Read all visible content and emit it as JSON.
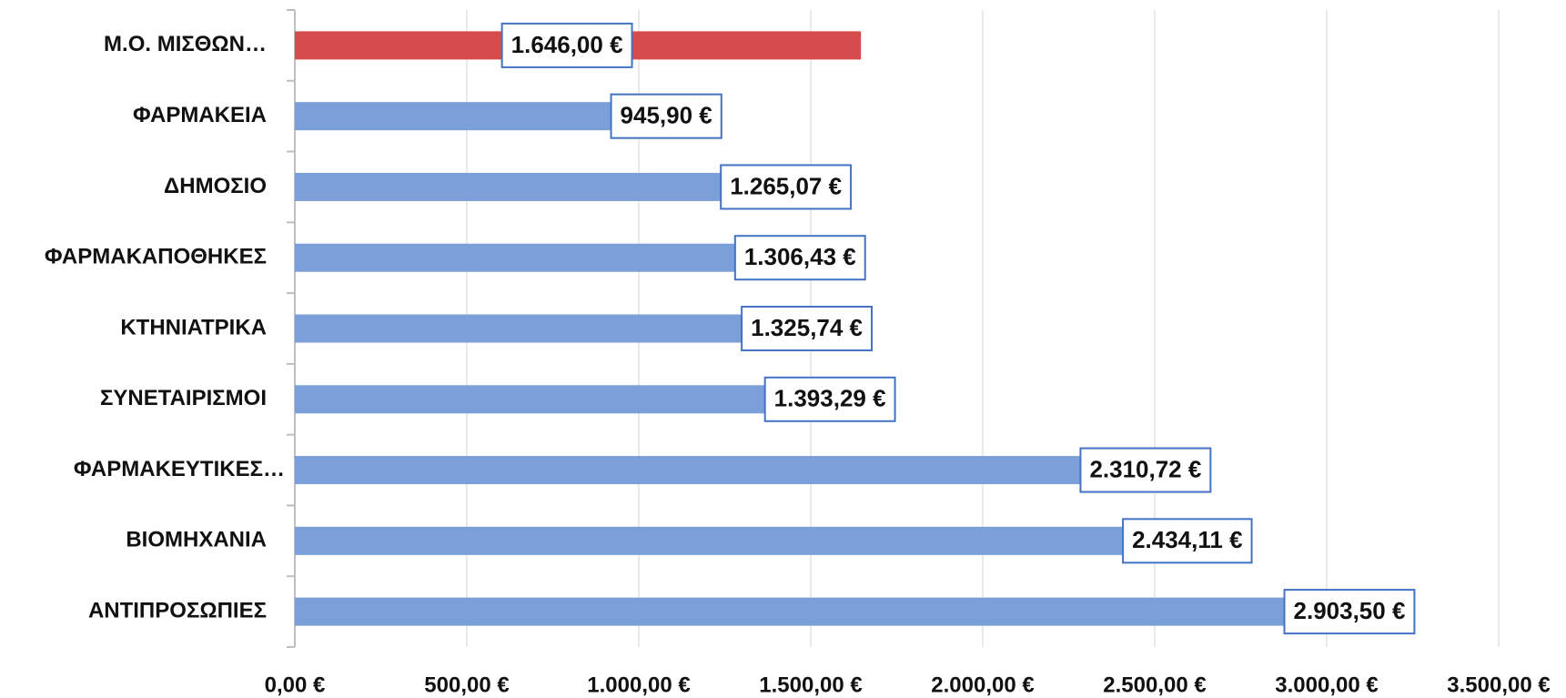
{
  "chart_data": {
    "type": "barh",
    "categories": [
      "Μ.Ο. ΜΙΣΘΩΝ…",
      "ΦΑΡΜΑΚΕΙΑ",
      "ΔΗΜΟΣΙΟ",
      "ΦΑΡΜΑΚΑΠΟΘΗΚΕΣ",
      "ΚΤΗΝΙΑΤΡΙΚΑ",
      "ΣΥΝΕΤΑΙΡΙΣΜΟΙ",
      "ΦΑΡΜΑΚΕΥΤΙΚΕΣ…",
      "ΒΙΟΜΗΧΑΝΙΑ",
      "ΑΝΤΙΠΡΟΣΩΠΙΕΣ"
    ],
    "values": [
      1646,
      945.9,
      1265.07,
      1306.43,
      1325.74,
      1393.29,
      2310.72,
      2434.11,
      2903.5
    ],
    "value_labels": [
      "1.646,00 €",
      "945,90 €",
      "1.265,07 €",
      "1.306,43 €",
      "1.325,74 €",
      "1.393,29 €",
      "2.310,72 €",
      "2.434,11 €",
      "2.903,50 €"
    ],
    "colors": [
      "#d64b4b",
      "#7b9fd9",
      "#7b9fd9",
      "#7b9fd9",
      "#7b9fd9",
      "#7b9fd9",
      "#7b9fd9",
      "#7b9fd9",
      "#7b9fd9"
    ],
    "label_colors": [
      "#111111",
      "#4472c4",
      "#4472c4",
      "#4472c4",
      "#4472c4",
      "#4472c4",
      "#4472c4",
      "#4472c4",
      "#4472c4"
    ],
    "xlim": [
      0,
      3500
    ],
    "xticks": [
      {
        "value": 0,
        "label": "0,00 €"
      },
      {
        "value": 500,
        "label": "500,00 €"
      },
      {
        "value": 1000,
        "label": "1.000,00 €"
      },
      {
        "value": 1500,
        "label": "1.500,00 €"
      },
      {
        "value": 2000,
        "label": "2.000,00 €"
      },
      {
        "value": 2500,
        "label": "2.500,00 €"
      },
      {
        "value": 3000,
        "label": "3.000,00 €"
      },
      {
        "value": 3500,
        "label": "3.500,00 €"
      }
    ],
    "grid": true
  }
}
